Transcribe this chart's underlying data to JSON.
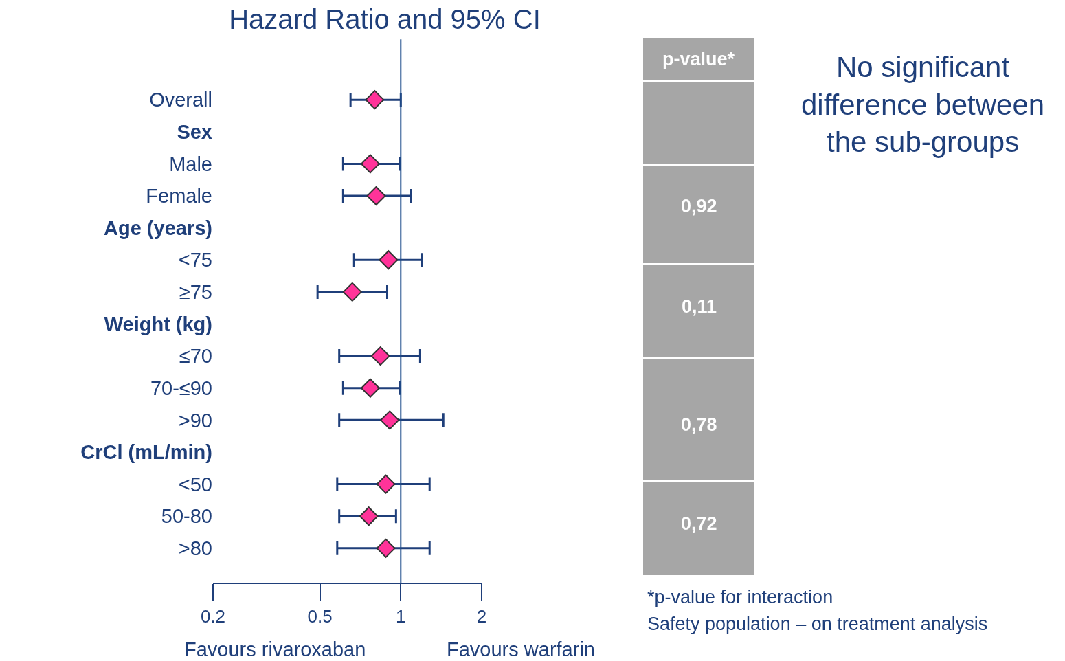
{
  "chart_data": {
    "type": "scatter",
    "title": "Hazard Ratio and 95% CI",
    "orientation": "horizontal",
    "categories": [
      "Overall",
      "Sex",
      "Male",
      "Female",
      "Age (years)",
      "<75",
      "≥75",
      "Weight (kg)",
      "≤70",
      "70-≤90",
      ">90",
      "CrCl (mL/min)",
      "<50",
      "50-80",
      ">80"
    ],
    "values": [
      0.8,
      null,
      0.77,
      0.81,
      null,
      0.9,
      0.66,
      null,
      0.84,
      0.77,
      0.91,
      null,
      0.88,
      0.76,
      0.88
    ],
    "errors": [
      [
        0.65,
        1.0
      ],
      null,
      [
        0.61,
        0.99
      ],
      [
        0.61,
        1.09
      ],
      null,
      [
        0.67,
        1.2
      ],
      [
        0.49,
        0.89
      ],
      null,
      [
        0.59,
        1.18
      ],
      [
        0.61,
        0.99
      ],
      [
        0.59,
        1.44
      ],
      null,
      [
        0.58,
        1.28
      ],
      [
        0.59,
        0.96
      ],
      [
        0.58,
        1.28
      ]
    ],
    "color": "#ff3399",
    "marker": "diamond",
    "log": "x",
    "xlim": [
      0.2,
      2
    ],
    "xticks": [
      0.2,
      0.5,
      1,
      2
    ],
    "legend": false,
    "ref_lines": [
      {
        "axis": "x",
        "value": 1,
        "label": null,
        "color": "#1f4e8c"
      }
    ],
    "annotations": [
      "Favours rivaroxaban",
      "Favours warfarin",
      "p-value*",
      "0,92",
      "0,11",
      "0,78",
      "0,72",
      "No significant difference between the sub-groups",
      "*p-value for interaction",
      "Safety population – on treatment analysis"
    ]
  }
}
